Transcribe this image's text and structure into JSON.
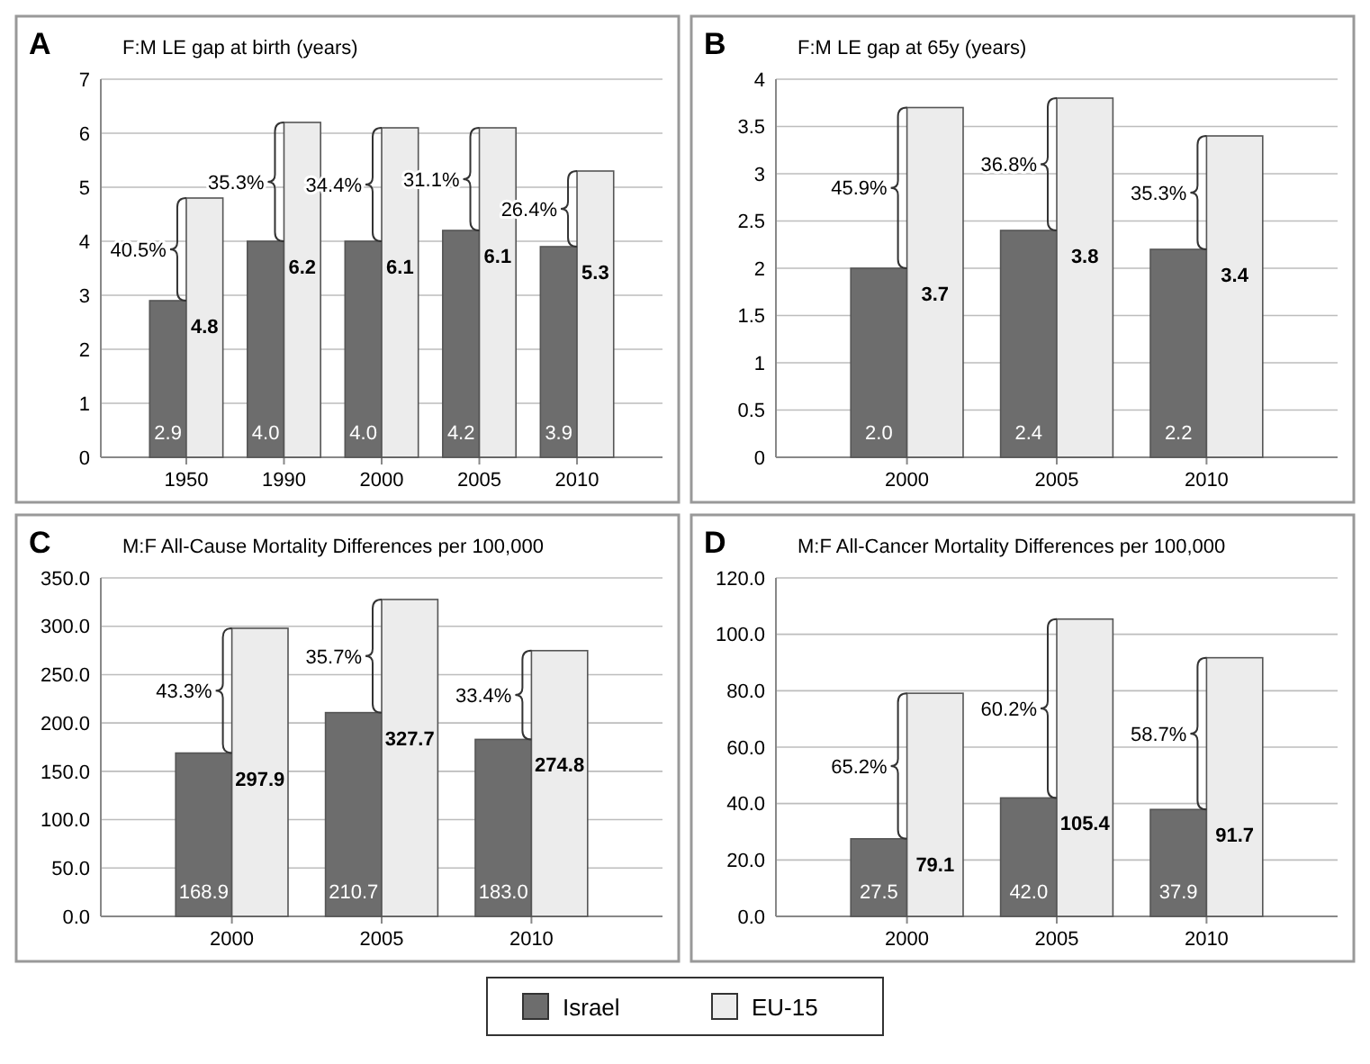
{
  "chart_data": [
    {
      "type": "bar",
      "title": "F:M LE gap at birth (years)",
      "categories": [
        "1950",
        "1990",
        "2000",
        "2005",
        "2010"
      ],
      "series": [
        {
          "color": "#6d6d6d",
          "values": [
            2.9,
            4.0,
            4.0,
            4.2,
            3.9
          ],
          "value_labels": [
            "2.9",
            "4.0",
            "4.0",
            "4.2",
            "3.9"
          ]
        },
        {
          "color": "#ececec",
          "values": [
            4.8,
            6.2,
            6.1,
            6.1,
            5.3
          ],
          "value_labels": [
            "4.8",
            "6.2",
            "6.1",
            "6.1",
            "5.3"
          ]
        }
      ],
      "ylim": [
        0,
        7
      ],
      "yticks": [
        0,
        1,
        2,
        3,
        4,
        5,
        6,
        7
      ],
      "grid": "y",
      "legend": false,
      "annotations": [
        "A",
        {
          "text": "40.5%",
          "x": "1950",
          "y": 3.85
        },
        {
          "text": "35.3%",
          "x": "1990",
          "y": 5.1
        },
        {
          "text": "34.4%",
          "x": "2000",
          "y": 5.05
        },
        {
          "text": "31.1%",
          "x": "2005",
          "y": 5.15
        },
        {
          "text": "26.4%",
          "x": "2010",
          "y": 4.6
        }
      ]
    },
    {
      "type": "bar",
      "title": "F:M LE gap at 65y (years)",
      "categories": [
        "2000",
        "2005",
        "2010"
      ],
      "series": [
        {
          "color": "#6d6d6d",
          "values": [
            2.0,
            2.4,
            2.2
          ],
          "value_labels": [
            "2.0",
            "2.4",
            "2.2"
          ]
        },
        {
          "color": "#ececec",
          "values": [
            3.7,
            3.8,
            3.4
          ],
          "value_labels": [
            "3.7",
            "3.8",
            "3.4"
          ]
        }
      ],
      "ylim": [
        0,
        4
      ],
      "yticks": [
        0,
        0.5,
        1,
        1.5,
        2,
        2.5,
        3,
        3.5,
        4
      ],
      "grid": "y",
      "legend": false,
      "annotations": [
        "B",
        {
          "text": "45.9%",
          "x": "2000",
          "y": 2.85
        },
        {
          "text": "36.8%",
          "x": "2005",
          "y": 3.1
        },
        {
          "text": "35.3%",
          "x": "2010",
          "y": 2.8
        }
      ]
    },
    {
      "type": "bar",
      "title": "M:F All-Cause Mortality Differences per 100,000",
      "categories": [
        "2000",
        "2005",
        "2010"
      ],
      "series": [
        {
          "color": "#6d6d6d",
          "values": [
            168.9,
            210.7,
            183.0
          ],
          "value_labels": [
            "168.9",
            "210.7",
            "183.0"
          ]
        },
        {
          "color": "#ececec",
          "values": [
            297.9,
            327.7,
            274.8
          ],
          "value_labels": [
            "297.9",
            "327.7",
            "274.8"
          ]
        }
      ],
      "ylim": [
        0,
        350
      ],
      "yticks": [
        {
          "value": 0,
          "label": "0.0"
        },
        {
          "value": 50,
          "label": "50.0"
        },
        {
          "value": 100,
          "label": "100.0"
        },
        {
          "value": 150,
          "label": "150.0"
        },
        {
          "value": 200,
          "label": "200.0"
        },
        {
          "value": 250,
          "label": "250.0"
        },
        {
          "value": 300,
          "label": "300.0"
        },
        {
          "value": 350,
          "label": "350.0"
        }
      ],
      "grid": "y",
      "legend": false,
      "annotations": [
        "C",
        {
          "text": "43.3%",
          "x": "2000",
          "y": 233.4
        },
        {
          "text": "35.7%",
          "x": "2005",
          "y": 269.2
        },
        {
          "text": "33.4%",
          "x": "2010",
          "y": 228.9
        }
      ]
    },
    {
      "type": "bar",
      "title": "M:F All-Cancer Mortality Differences per 100,000",
      "categories": [
        "2000",
        "2005",
        "2010"
      ],
      "series": [
        {
          "name": "Israel",
          "color": "#6d6d6d",
          "values": [
            27.5,
            42.0,
            37.9
          ],
          "value_labels": [
            "27.5",
            "42.0",
            "37.9"
          ]
        },
        {
          "name": "EU-15",
          "color": "#ececec",
          "values": [
            79.1,
            105.4,
            91.7
          ],
          "value_labels": [
            "79.1",
            "105.4",
            "91.7"
          ]
        }
      ],
      "ylim": [
        0,
        120
      ],
      "yticks": [
        {
          "value": 0,
          "label": "0.0"
        },
        {
          "value": 20,
          "label": "20.0"
        },
        {
          "value": 40,
          "label": "40.0"
        },
        {
          "value": 60,
          "label": "60.0"
        },
        {
          "value": 80,
          "label": "80.0"
        },
        {
          "value": 100,
          "label": "100.0"
        },
        {
          "value": 120,
          "label": "120.0"
        }
      ],
      "grid": "y",
      "legend": "bottom",
      "annotations": [
        "D",
        {
          "text": "65.2%",
          "x": "2000",
          "y": 53.3
        },
        {
          "text": "60.2%",
          "x": "2005",
          "y": 73.7
        },
        {
          "text": "58.7%",
          "x": "2010",
          "y": 64.8
        }
      ]
    }
  ]
}
